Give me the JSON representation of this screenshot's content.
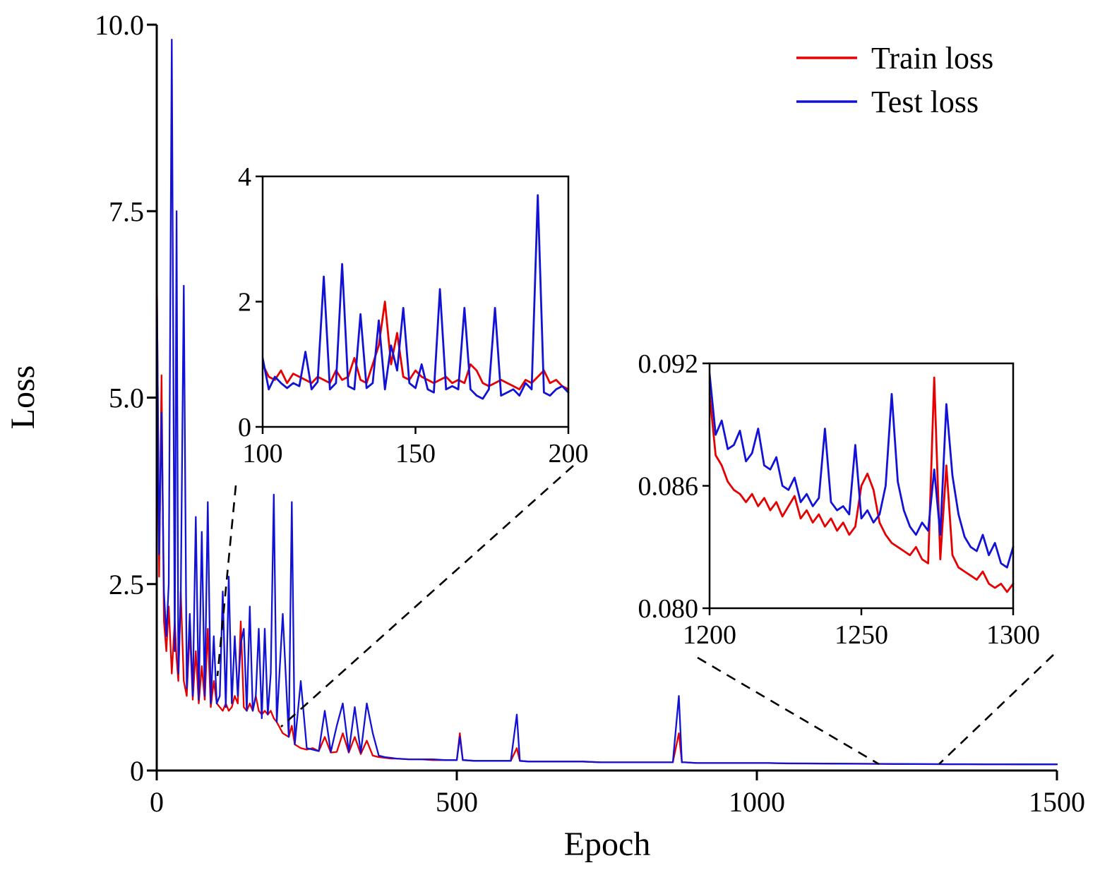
{
  "chart_data": {
    "type": "line",
    "title": "",
    "xlabel": "Epoch",
    "ylabel": "Loss",
    "grid": false,
    "legend_position": "upper right",
    "legend": [
      {
        "label": "Train loss",
        "color": "#e60000"
      },
      {
        "label": "Test loss",
        "color": "#1212d6"
      }
    ],
    "main": {
      "xlim": [
        0,
        1500
      ],
      "ylim": [
        0,
        10
      ],
      "xticks": [
        {
          "v": 0,
          "label": "0"
        },
        {
          "v": 500,
          "label": "500"
        },
        {
          "v": 1000,
          "label": "1000"
        },
        {
          "v": 1500,
          "label": "1500"
        }
      ],
      "yticks": [
        {
          "v": 0,
          "label": "0"
        },
        {
          "v": 2.5,
          "label": "2.5"
        },
        {
          "v": 5,
          "label": "5.0"
        },
        {
          "v": 7.5,
          "label": "7.5"
        },
        {
          "v": 10,
          "label": "10.0"
        }
      ],
      "x": [
        0,
        4,
        8,
        12,
        16,
        20,
        25,
        30,
        33,
        36,
        40,
        45,
        50,
        55,
        60,
        65,
        70,
        75,
        80,
        85,
        90,
        95,
        100,
        105,
        110,
        115,
        120,
        125,
        130,
        135,
        140,
        145,
        150,
        155,
        160,
        165,
        170,
        175,
        180,
        185,
        190,
        195,
        200,
        210,
        220,
        225,
        230,
        240,
        250,
        260,
        270,
        280,
        290,
        300,
        310,
        320,
        330,
        340,
        350,
        360,
        370,
        380,
        390,
        400,
        420,
        440,
        460,
        480,
        500,
        505,
        510,
        530,
        550,
        570,
        590,
        600,
        605,
        620,
        650,
        680,
        710,
        740,
        770,
        800,
        830,
        860,
        870,
        875,
        880,
        900,
        930,
        960,
        990,
        1020,
        1050,
        1080,
        1110,
        1140,
        1170,
        1200,
        1230,
        1260,
        1290,
        1320,
        1350,
        1380,
        1410,
        1440,
        1470,
        1500
      ],
      "series": [
        {
          "name": "Train loss",
          "color": "#e60000",
          "values": [
            6.9,
            2.6,
            5.3,
            2.0,
            1.6,
            2.2,
            1.3,
            2.0,
            1.5,
            1.2,
            2.4,
            1.2,
            1.0,
            1.9,
            0.95,
            1.6,
            0.9,
            1.4,
            0.95,
            1.9,
            0.85,
            1.2,
            0.9,
            0.85,
            0.8,
            0.9,
            0.8,
            0.85,
            1.0,
            0.9,
            2.0,
            0.85,
            0.8,
            0.9,
            0.8,
            1.0,
            0.8,
            0.75,
            0.8,
            0.75,
            0.8,
            0.7,
            0.65,
            0.5,
            0.45,
            0.6,
            0.35,
            0.3,
            0.28,
            0.3,
            0.26,
            0.45,
            0.24,
            0.25,
            0.5,
            0.24,
            0.45,
            0.22,
            0.4,
            0.2,
            0.18,
            0.17,
            0.16,
            0.16,
            0.15,
            0.15,
            0.14,
            0.14,
            0.14,
            0.5,
            0.14,
            0.13,
            0.13,
            0.13,
            0.13,
            0.3,
            0.13,
            0.12,
            0.12,
            0.12,
            0.12,
            0.11,
            0.11,
            0.11,
            0.11,
            0.11,
            0.5,
            0.11,
            0.11,
            0.1,
            0.1,
            0.1,
            0.1,
            0.1,
            0.095,
            0.095,
            0.093,
            0.092,
            0.09,
            0.089,
            0.087,
            0.086,
            0.085,
            0.084,
            0.084,
            0.083,
            0.083,
            0.082,
            0.082,
            0.082
          ]
        },
        {
          "name": "Test loss",
          "color": "#1212d6",
          "values": [
            6.8,
            2.9,
            4.8,
            2.4,
            1.8,
            2.5,
            9.8,
            1.6,
            7.5,
            1.3,
            2.3,
            6.5,
            1.1,
            2.1,
            1.0,
            3.4,
            0.95,
            3.2,
            1.0,
            3.6,
            0.9,
            1.8,
            0.9,
            1.0,
            2.4,
            0.85,
            2.6,
            0.9,
            1.8,
            1.0,
            1.7,
            1.9,
            0.8,
            2.2,
            0.8,
            1.0,
            1.9,
            0.7,
            1.9,
            0.75,
            1.3,
            3.7,
            0.65,
            2.1,
            0.45,
            3.6,
            0.35,
            1.2,
            0.3,
            0.28,
            0.26,
            0.8,
            0.25,
            0.6,
            0.9,
            0.25,
            0.85,
            0.24,
            0.9,
            0.5,
            0.2,
            0.18,
            0.17,
            0.16,
            0.15,
            0.15,
            0.15,
            0.14,
            0.14,
            0.45,
            0.14,
            0.13,
            0.13,
            0.13,
            0.13,
            0.75,
            0.13,
            0.12,
            0.12,
            0.12,
            0.12,
            0.11,
            0.11,
            0.11,
            0.11,
            0.11,
            1.0,
            0.11,
            0.11,
            0.1,
            0.1,
            0.1,
            0.1,
            0.1,
            0.096,
            0.095,
            0.094,
            0.092,
            0.091,
            0.09,
            0.088,
            0.087,
            0.086,
            0.085,
            0.085,
            0.084,
            0.084,
            0.083,
            0.083,
            0.083
          ]
        }
      ]
    },
    "inset_1": {
      "xlim": [
        100,
        200
      ],
      "ylim": [
        0,
        4
      ],
      "xticks": [
        {
          "v": 100,
          "label": "100"
        },
        {
          "v": 150,
          "label": "150"
        },
        {
          "v": 200,
          "label": "200"
        }
      ],
      "yticks": [
        {
          "v": 0,
          "label": "0"
        },
        {
          "v": 2,
          "label": "2"
        },
        {
          "v": 4,
          "label": "4"
        }
      ],
      "x": [
        100,
        102,
        104,
        106,
        108,
        110,
        112,
        114,
        116,
        118,
        120,
        122,
        124,
        126,
        128,
        130,
        132,
        134,
        136,
        138,
        140,
        142,
        144,
        146,
        148,
        150,
        152,
        154,
        156,
        158,
        160,
        162,
        164,
        166,
        168,
        170,
        172,
        174,
        176,
        178,
        180,
        182,
        184,
        186,
        188,
        190,
        192,
        194,
        196,
        198,
        200
      ],
      "series": [
        {
          "name": "Train loss",
          "color": "#e60000",
          "values": [
            1.0,
            0.8,
            0.75,
            0.9,
            0.7,
            0.85,
            0.8,
            0.75,
            0.7,
            0.8,
            0.75,
            0.7,
            0.9,
            0.75,
            0.8,
            1.1,
            0.75,
            0.7,
            1.0,
            1.3,
            2.0,
            1.0,
            1.5,
            0.8,
            0.75,
            0.9,
            0.8,
            0.75,
            0.7,
            0.75,
            0.8,
            0.7,
            0.75,
            0.7,
            1.0,
            0.9,
            0.7,
            0.65,
            0.7,
            0.75,
            0.7,
            0.65,
            0.6,
            0.75,
            0.7,
            0.8,
            0.9,
            0.7,
            0.75,
            0.65,
            0.6
          ]
        },
        {
          "name": "Test loss",
          "color": "#1212d6",
          "values": [
            1.1,
            0.6,
            0.8,
            0.7,
            0.62,
            0.7,
            0.65,
            1.2,
            0.6,
            0.72,
            2.4,
            0.6,
            0.7,
            2.6,
            0.65,
            0.6,
            1.8,
            0.62,
            0.7,
            1.7,
            0.6,
            1.3,
            0.9,
            1.9,
            0.7,
            0.62,
            1.0,
            0.6,
            0.55,
            2.2,
            0.6,
            0.65,
            0.6,
            1.9,
            0.6,
            0.5,
            0.45,
            0.6,
            1.9,
            0.5,
            0.55,
            0.6,
            0.5,
            0.7,
            0.6,
            3.7,
            0.55,
            0.5,
            0.6,
            0.65,
            0.55
          ]
        }
      ]
    },
    "inset_2": {
      "xlim": [
        1200,
        1300
      ],
      "ylim": [
        0.08,
        0.092
      ],
      "xticks": [
        {
          "v": 1200,
          "label": "1200"
        },
        {
          "v": 1250,
          "label": "1250"
        },
        {
          "v": 1300,
          "label": "1300"
        }
      ],
      "yticks": [
        {
          "v": 0.08,
          "label": "0.080"
        },
        {
          "v": 0.086,
          "label": "0.086"
        },
        {
          "v": 0.092,
          "label": "0.092"
        }
      ],
      "x": [
        1200,
        1202,
        1204,
        1206,
        1208,
        1210,
        1212,
        1214,
        1216,
        1218,
        1220,
        1222,
        1224,
        1226,
        1228,
        1230,
        1232,
        1234,
        1236,
        1238,
        1240,
        1242,
        1244,
        1246,
        1248,
        1250,
        1252,
        1254,
        1256,
        1258,
        1260,
        1262,
        1264,
        1266,
        1268,
        1270,
        1272,
        1274,
        1276,
        1278,
        1280,
        1282,
        1284,
        1286,
        1288,
        1290,
        1292,
        1294,
        1296,
        1298,
        1300
      ],
      "series": [
        {
          "name": "Train loss",
          "color": "#e60000",
          "values": [
            0.0905,
            0.0875,
            0.087,
            0.0862,
            0.0858,
            0.0856,
            0.0852,
            0.0856,
            0.085,
            0.0854,
            0.0848,
            0.0852,
            0.0845,
            0.085,
            0.0855,
            0.0844,
            0.0848,
            0.0842,
            0.0846,
            0.084,
            0.0844,
            0.0838,
            0.0842,
            0.0836,
            0.084,
            0.086,
            0.0866,
            0.0858,
            0.0842,
            0.0836,
            0.0832,
            0.083,
            0.0828,
            0.0826,
            0.083,
            0.0824,
            0.0822,
            0.0913,
            0.0824,
            0.087,
            0.0826,
            0.082,
            0.0818,
            0.0816,
            0.0814,
            0.0818,
            0.0812,
            0.081,
            0.0812,
            0.0808,
            0.0812
          ]
        },
        {
          "name": "Test loss",
          "color": "#1212d6",
          "values": [
            0.0915,
            0.0885,
            0.0892,
            0.0878,
            0.088,
            0.0887,
            0.0872,
            0.0876,
            0.0888,
            0.087,
            0.0868,
            0.0874,
            0.086,
            0.0858,
            0.0864,
            0.0852,
            0.0856,
            0.085,
            0.0854,
            0.0888,
            0.0852,
            0.0848,
            0.085,
            0.0846,
            0.088,
            0.0844,
            0.0848,
            0.0842,
            0.0846,
            0.086,
            0.0905,
            0.0862,
            0.0848,
            0.084,
            0.0836,
            0.0842,
            0.0838,
            0.0868,
            0.0836,
            0.09,
            0.0865,
            0.0846,
            0.0835,
            0.083,
            0.0828,
            0.0836,
            0.0826,
            0.0832,
            0.0822,
            0.082,
            0.083
          ]
        }
      ]
    }
  }
}
